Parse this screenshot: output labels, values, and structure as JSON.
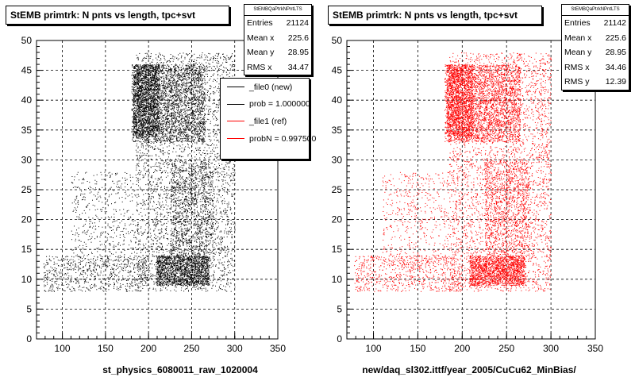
{
  "chart_data": [
    {
      "type": "scatter",
      "title": "StEMB primtrk: N pnts vs length, tpc+svt",
      "xlabel": "st_physics_6080011_raw_1020004",
      "ylabel": "",
      "xlim": [
        70,
        350
      ],
      "ylim": [
        0,
        50
      ],
      "x_ticks": [
        "100",
        "150",
        "200",
        "250",
        "300",
        "350"
      ],
      "y_ticks": [
        "0",
        "5",
        "10",
        "15",
        "20",
        "25",
        "30",
        "35",
        "40",
        "45",
        "50"
      ],
      "grid": true,
      "marker_color": "#000000",
      "stats": {
        "name": "StEMBQaPtrkNPntLTS",
        "rows": [
          {
            "label": "Entries",
            "value": "21124"
          },
          {
            "label": "Mean x",
            "value": "225.6"
          },
          {
            "label": "Mean y",
            "value": "28.95"
          },
          {
            "label": "RMS x",
            "value": "34.47"
          }
        ]
      },
      "legend": {
        "placement": "top-right",
        "entries": [
          {
            "label": "_file0 (new)",
            "color": "#000000"
          },
          {
            "label": "prob = 1.000000",
            "color": "#000000"
          },
          {
            "label": "_file1 (ref)",
            "color": "#ff0000"
          },
          {
            "label": "probN = 0.997500",
            "color": "#ff0000"
          }
        ]
      },
      "clusters": [
        {
          "x": [
            180,
            265
          ],
          "y": [
            33,
            46
          ],
          "n": 2600
        },
        {
          "x": [
            182,
            212
          ],
          "y": [
            34,
            46
          ],
          "n": 1400
        },
        {
          "x": [
            208,
            270
          ],
          "y": [
            9,
            14
          ],
          "n": 1700
        },
        {
          "x": [
            185,
            300
          ],
          "y": [
            8,
            48
          ],
          "n": 3500
        },
        {
          "x": [
            225,
            275
          ],
          "y": [
            14,
            30
          ],
          "n": 1000
        },
        {
          "x": [
            78,
            200
          ],
          "y": [
            8,
            14
          ],
          "n": 700
        },
        {
          "x": [
            110,
            185
          ],
          "y": [
            12,
            28
          ],
          "n": 500
        }
      ]
    },
    {
      "type": "scatter",
      "title": "StEMB primtrk: N pnts vs length, tpc+svt",
      "xlabel": "new/daq_sl302.ittf/year_2005/CuCu62_MinBias/",
      "ylabel": "",
      "xlim": [
        70,
        350
      ],
      "ylim": [
        0,
        50
      ],
      "x_ticks": [
        "100",
        "150",
        "200",
        "250",
        "300",
        "350"
      ],
      "y_ticks": [
        "0",
        "5",
        "10",
        "15",
        "20",
        "25",
        "30",
        "35",
        "40",
        "45",
        "50"
      ],
      "grid": true,
      "marker_color": "#ff0000",
      "stats": {
        "name": "StEMBQaPtrkNPntLTS",
        "rows": [
          {
            "label": "Entries",
            "value": "21142"
          },
          {
            "label": "Mean x",
            "value": "225.6"
          },
          {
            "label": "Mean y",
            "value": "28.95"
          },
          {
            "label": "RMS x",
            "value": "34.46"
          },
          {
            "label": "RMS y",
            "value": "12.39"
          }
        ]
      },
      "clusters": [
        {
          "x": [
            180,
            265
          ],
          "y": [
            33,
            46
          ],
          "n": 2600
        },
        {
          "x": [
            182,
            212
          ],
          "y": [
            34,
            46
          ],
          "n": 1400
        },
        {
          "x": [
            208,
            270
          ],
          "y": [
            9,
            14
          ],
          "n": 1700
        },
        {
          "x": [
            185,
            300
          ],
          "y": [
            8,
            48
          ],
          "n": 3500
        },
        {
          "x": [
            225,
            275
          ],
          "y": [
            14,
            30
          ],
          "n": 1000
        },
        {
          "x": [
            78,
            200
          ],
          "y": [
            8,
            14
          ],
          "n": 700
        },
        {
          "x": [
            110,
            185
          ],
          "y": [
            12,
            28
          ],
          "n": 500
        }
      ]
    }
  ]
}
